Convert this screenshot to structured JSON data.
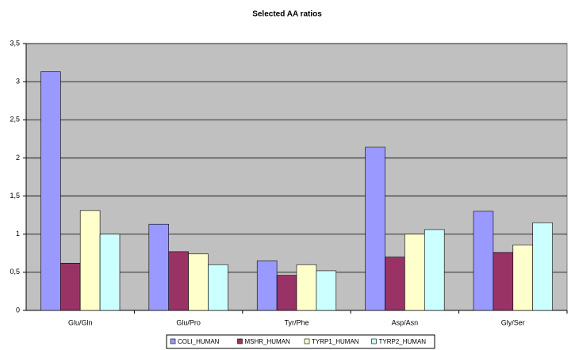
{
  "chart_data": {
    "type": "bar",
    "title": "Selected AA ratios",
    "categories": [
      "Glu/Gln",
      "Glu/Pro",
      "Tyr/Phe",
      "Asp/Asn",
      "Gly/Ser"
    ],
    "series": [
      {
        "name": "COLI_HUMAN",
        "color": "#9999ff",
        "values": [
          3.13,
          1.13,
          0.65,
          2.14,
          1.3
        ]
      },
      {
        "name": "MSHR_HUMAN",
        "color": "#993366",
        "values": [
          0.62,
          0.77,
          0.46,
          0.7,
          0.76
        ]
      },
      {
        "name": "TYRP1_HUMAN",
        "color": "#ffffcc",
        "values": [
          1.31,
          0.74,
          0.6,
          1.0,
          0.86
        ]
      },
      {
        "name": "TYRP2_HUMAN",
        "color": "#ccffff",
        "values": [
          1.0,
          0.6,
          0.52,
          1.06,
          1.15
        ]
      }
    ],
    "ylim": [
      0,
      3.5
    ],
    "yticks": [
      0,
      {
        "value": 0.5,
        "label": "0,5"
      },
      1,
      {
        "value": 1.5,
        "label": "1,5"
      },
      2,
      {
        "value": 2.5,
        "label": "2,5"
      },
      3,
      {
        "value": 3.5,
        "label": "3,5"
      }
    ],
    "grid": true,
    "plot_background": "#c0c0c0",
    "legend": "bottom"
  }
}
